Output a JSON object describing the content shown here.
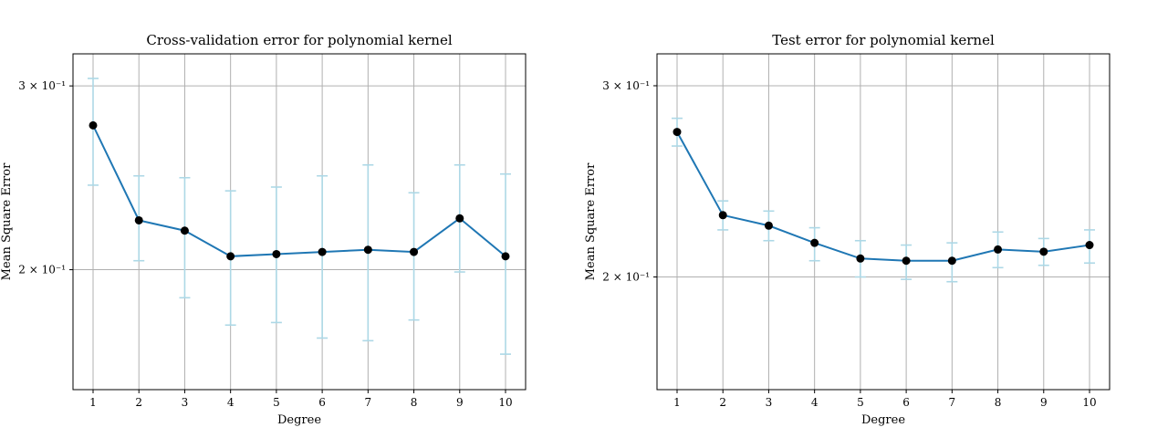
{
  "chart_data": [
    {
      "type": "line",
      "title": "Cross-validation error for polynomial kernel",
      "xlabel": "Degree",
      "ylabel": "Mean Square Error",
      "yscale": "log",
      "grid": true,
      "ylim": [
        0.1535,
        0.322
      ],
      "y_tick_values": [
        0.2,
        0.3
      ],
      "y_tick_labels": [
        "2 × 10⁻¹",
        "3 × 10⁻¹"
      ],
      "x": [
        "1",
        "2",
        "3",
        "4",
        "5",
        "6",
        "7",
        "8",
        "9",
        "10"
      ],
      "series": [
        {
          "values": [
            0.275,
            0.223,
            0.218,
            0.206,
            0.207,
            0.208,
            0.209,
            0.208,
            0.224,
            0.206
          ],
          "error_upper": [
            0.305,
            0.246,
            0.245,
            0.238,
            0.24,
            0.246,
            0.252,
            0.237,
            0.252,
            0.247
          ],
          "error_lower": [
            0.241,
            0.204,
            0.188,
            0.177,
            0.178,
            0.172,
            0.171,
            0.179,
            0.199,
            0.166
          ],
          "line_color": "#1f77b4",
          "marker_color": "#000000",
          "errorbar_color": "#add8e6"
        }
      ]
    },
    {
      "type": "line",
      "title": "Test error for polynomial kernel",
      "xlabel": "Degree",
      "ylabel": "Mean Square Error",
      "yscale": "log",
      "grid": true,
      "ylim": [
        0.1575,
        0.321
      ],
      "y_tick_values": [
        0.2,
        0.3
      ],
      "y_tick_labels": [
        "2 × 10⁻¹",
        "3 × 10⁻¹"
      ],
      "x": [
        "1",
        "2",
        "3",
        "4",
        "5",
        "6",
        "7",
        "8",
        "9",
        "10"
      ],
      "series": [
        {
          "values": [
            0.272,
            0.228,
            0.223,
            0.215,
            0.208,
            0.207,
            0.207,
            0.212,
            0.211,
            0.214
          ],
          "error_upper": [
            0.28,
            0.235,
            0.23,
            0.222,
            0.216,
            0.214,
            0.215,
            0.22,
            0.217,
            0.221
          ],
          "error_lower": [
            0.264,
            0.221,
            0.216,
            0.207,
            0.2,
            0.199,
            0.198,
            0.204,
            0.205,
            0.206
          ],
          "line_color": "#1f77b4",
          "marker_color": "#000000",
          "errorbar_color": "#add8e6"
        }
      ]
    }
  ]
}
